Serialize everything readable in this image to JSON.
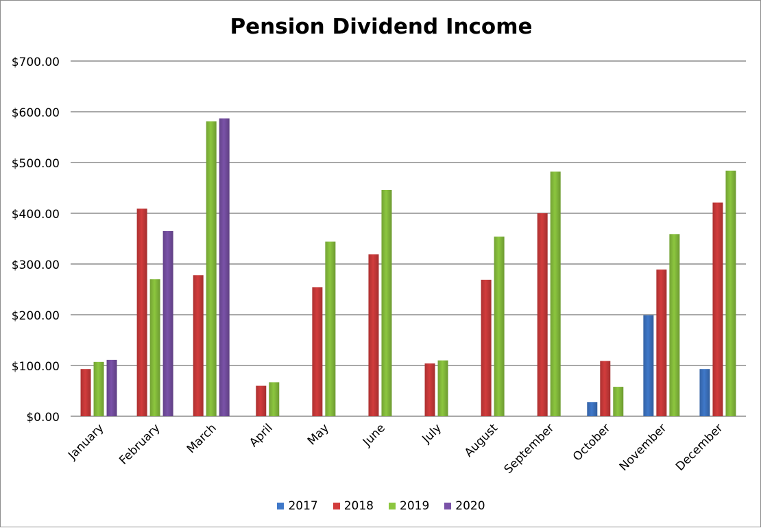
{
  "chart_data": {
    "type": "bar",
    "title": "Pension Dividend Income",
    "xlabel": "",
    "ylabel": "",
    "ylim": [
      0,
      700
    ],
    "yticks": [
      0,
      100,
      200,
      300,
      400,
      500,
      600,
      700
    ],
    "ytick_labels": [
      "$0.00",
      "$100.00",
      "$200.00",
      "$300.00",
      "$400.00",
      "$500.00",
      "$600.00",
      "$700.00"
    ],
    "grid": true,
    "legend_position": "bottom",
    "categories": [
      "January",
      "February",
      "March",
      "April",
      "May",
      "June",
      "July",
      "August",
      "September",
      "October",
      "November",
      "December"
    ],
    "series": [
      {
        "name": "2017",
        "color": "#3f78c9",
        "values": [
          null,
          null,
          null,
          null,
          null,
          null,
          null,
          null,
          null,
          28,
          199,
          93
        ]
      },
      {
        "name": "2018",
        "color": "#d23c3c",
        "values": [
          93,
          409,
          278,
          60,
          254,
          319,
          104,
          269,
          400,
          109,
          289,
          421
        ]
      },
      {
        "name": "2019",
        "color": "#8cc63f",
        "values": [
          107,
          270,
          581,
          67,
          344,
          446,
          110,
          354,
          482,
          58,
          359,
          484
        ]
      },
      {
        "name": "2020",
        "color": "#7a52a8",
        "values": [
          111,
          365,
          587,
          null,
          null,
          null,
          null,
          null,
          null,
          null,
          null,
          null
        ]
      }
    ]
  }
}
